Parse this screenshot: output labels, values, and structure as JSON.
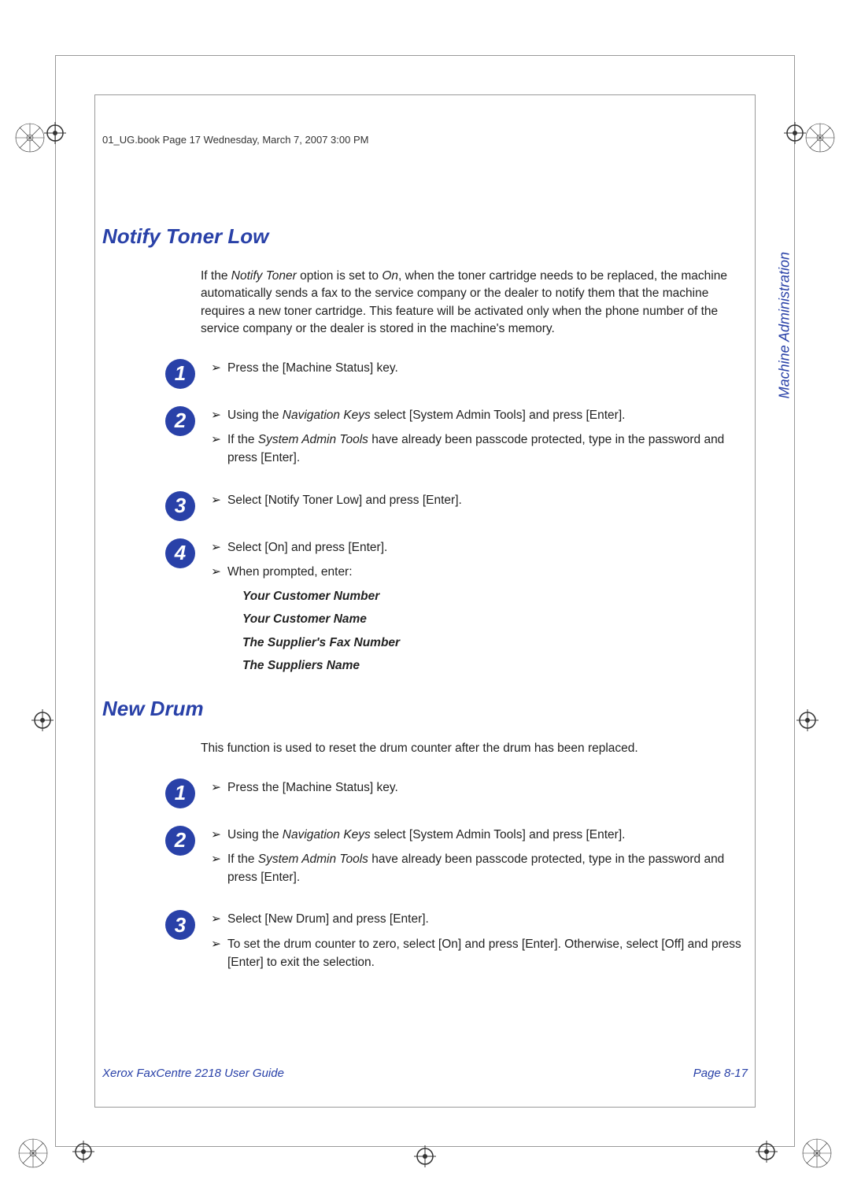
{
  "colors": {
    "brand": "#2941a8",
    "text": "#222222",
    "frame": "#999999"
  },
  "header": {
    "running_header": "01_UG.book  Page 17  Wednesday, March 7, 2007  3:00 PM"
  },
  "sidebar": {
    "chapter_label": "Machine Administration"
  },
  "sections": [
    {
      "title": "Notify Toner Low",
      "intro_html": "If the <em>Notify Toner</em> option is set to <em>On</em>, when the toner cartridge needs to be replaced, the machine automatically sends a fax to the service company or the dealer to notify them that the machine requires a new toner cartridge. This feature will be activated only when the phone number of the service company or the dealer is stored in the machine's memory.",
      "steps": [
        {
          "num": "1",
          "items": [
            "Press the [Machine Status] key."
          ]
        },
        {
          "num": "2",
          "items": [
            "Using the <em>Navigation Keys</em> select [System Admin Tools] and press [Enter].",
            "If the <em>System Admin Tools</em> have already been passcode protected, type in the password and press [Enter]."
          ]
        },
        {
          "num": "3",
          "items": [
            "Select [Notify Toner Low] and press [Enter]."
          ]
        },
        {
          "num": "4",
          "items": [
            "Select [On] and press [Enter].",
            "When prompted, enter:"
          ],
          "prompts": [
            "Your Customer Number",
            "Your Customer Name",
            "The Supplier's Fax Number",
            "The Suppliers Name"
          ]
        }
      ]
    },
    {
      "title": "New Drum",
      "intro_html": "This function is used to reset the drum counter after the drum has been replaced.",
      "steps": [
        {
          "num": "1",
          "items": [
            "Press the [Machine Status] key."
          ]
        },
        {
          "num": "2",
          "items": [
            "Using the <em>Navigation Keys</em> select [System Admin Tools] and press [Enter].",
            "If the <em>System Admin Tools</em> have already been passcode protected, type in the password and press [Enter]."
          ]
        },
        {
          "num": "3",
          "items": [
            "Select [New Drum] and press [Enter].",
            "To set the drum counter to zero, select [On] and press [Enter]. Otherwise, select [Off] and press [Enter] to exit the selection."
          ]
        }
      ]
    }
  ],
  "footer": {
    "left": "Xerox FaxCentre 2218 User Guide",
    "right": "Page 8-17"
  },
  "typography": {
    "title_fontsize": 26,
    "body_fontsize": 15.5,
    "footer_fontsize": 15
  }
}
